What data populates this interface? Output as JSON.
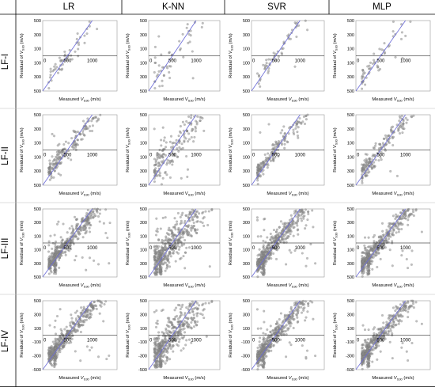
{
  "chart_data": {
    "type": "scatter",
    "columns": [
      "LR",
      "K-NN",
      "SVR",
      "MLP"
    ],
    "rows": [
      "LF-I",
      "LF-II",
      "LF-III",
      "LF-IV"
    ],
    "xlabel_prefix": "Measured ",
    "xlabel_var": "V",
    "xlabel_sub": "S30",
    "xlabel_suffix": " (m/s)",
    "ylabel_prefix": "Residual of ",
    "ylabel_var": "V",
    "ylabel_sub": "S30",
    "ylabel_suffix": " (m/s)",
    "x_ticks": [
      "0",
      "500",
      "1000"
    ],
    "y_ticks": [
      "500",
      "400",
      "300",
      "200",
      "100",
      "0",
      "100",
      "200",
      "300",
      "400",
      "500"
    ],
    "y_ticks_lower_panels": [
      "500",
      "400",
      "300",
      "200",
      "100",
      "0",
      "100",
      "200",
      "300",
      "400",
      "500"
    ],
    "y_ticks_bottom_row": [
      "500",
      "400",
      "300",
      "200",
      "100",
      "0",
      "-100",
      "-200",
      "-300",
      "-400",
      "-500"
    ],
    "xlim": [
      0,
      1500
    ],
    "ylim": [
      -500,
      500
    ],
    "reference_line": "y = 0",
    "trend_line": {
      "x": [
        0,
        1000
      ],
      "y": [
        -500,
        500
      ]
    },
    "point_density": {
      "LF-I": "sparse",
      "LF-II": "moderate",
      "LF-III": "dense",
      "LF-IV": "dense"
    },
    "colors": {
      "points": "#8c8c8c",
      "trend": "#6a6ad8",
      "zero_line": "#000000"
    }
  }
}
